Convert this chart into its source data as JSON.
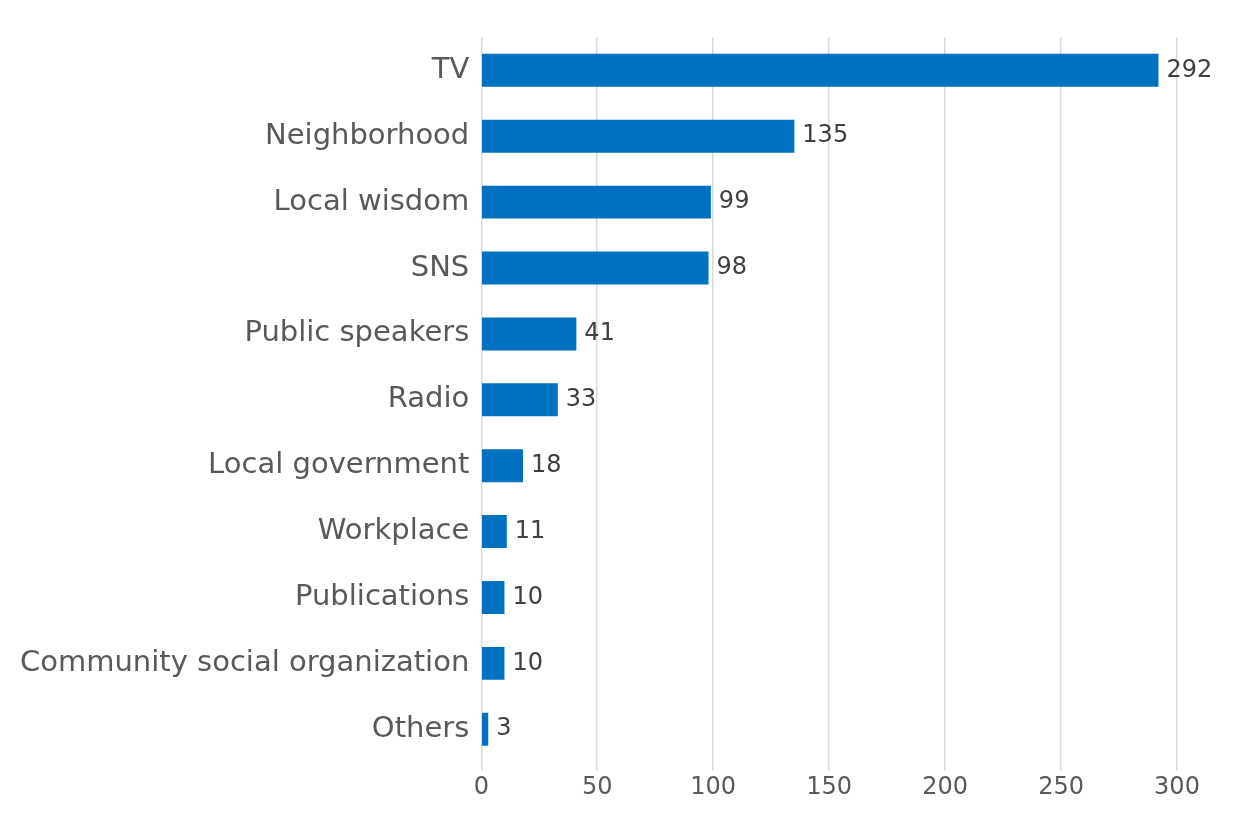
{
  "chart_data": {
    "type": "bar",
    "orientation": "horizontal",
    "categories": [
      "TV",
      "Neighborhood",
      "Local wisdom",
      "SNS",
      "Public speakers",
      "Radio",
      "Local government",
      "Workplace",
      "Publications",
      "Community social organization",
      "Others"
    ],
    "values": [
      292,
      135,
      99,
      98,
      41,
      33,
      18,
      11,
      10,
      10,
      3
    ],
    "color": "#0070c0",
    "xlim": [
      0,
      300
    ],
    "xticks": [
      0,
      50,
      100,
      150,
      200,
      250,
      300
    ],
    "grid": "x",
    "data_labels": true,
    "legend": false
  }
}
